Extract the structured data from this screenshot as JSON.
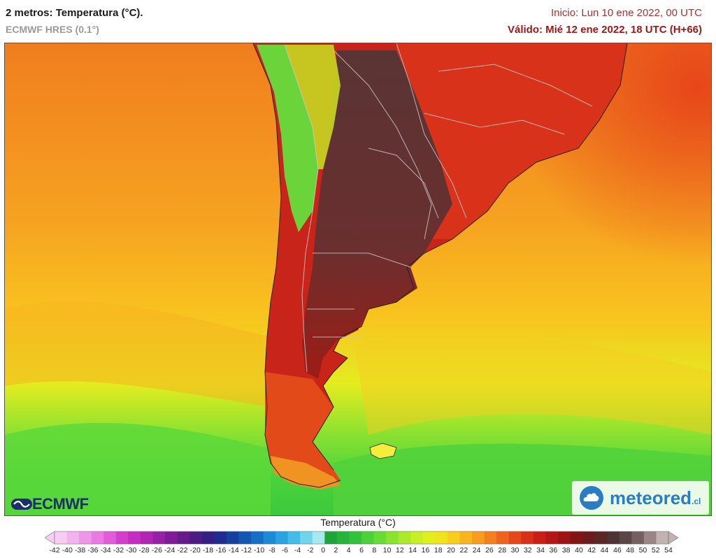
{
  "header": {
    "title": "2 metros: Temperatura (°C).",
    "model": "ECMWF HRES (0.1°)",
    "init": "Inicio: Lun 10 ene 2022, 00 UTC",
    "valid": "Válido: Mié 12 ene 2022, 18 UTC (H+66)"
  },
  "logos": {
    "ecmwf": "ECMWF",
    "meteored": "meteored",
    "meteored_tld": ".cl"
  },
  "legend": {
    "title": "Temperatura (°C)",
    "ticks": [
      "-42",
      "-40",
      "-38",
      "-36",
      "-34",
      "-32",
      "-30",
      "-28",
      "-26",
      "-24",
      "-22",
      "-20",
      "-18",
      "-16",
      "-14",
      "-12",
      "-10",
      "-8",
      "-6",
      "-4",
      "-2",
      "0",
      "2",
      "4",
      "6",
      "8",
      "10",
      "12",
      "14",
      "16",
      "18",
      "20",
      "22",
      "24",
      "26",
      "28",
      "30",
      "32",
      "34",
      "36",
      "38",
      "40",
      "42",
      "44",
      "46",
      "48",
      "50",
      "52",
      "54"
    ],
    "colors": [
      "#f7cdf3",
      "#f3b3ee",
      "#ee97e8",
      "#e97ae1",
      "#e05cd8",
      "#d43ecd",
      "#c52cc1",
      "#b025b2",
      "#9720a4",
      "#7e1b97",
      "#671a8a",
      "#4c1c86",
      "#332082",
      "#1f2b8e",
      "#16409e",
      "#1457b3",
      "#1470c7",
      "#1c8ad6",
      "#2aa3e0",
      "#41bde8",
      "#6fd4ec",
      "#a6e9ee",
      "#1fa33b",
      "#27b43a",
      "#34c23a",
      "#4bd23a",
      "#67dc34",
      "#8ae42d",
      "#aaea28",
      "#c8ef23",
      "#e2ef1f",
      "#f3e31d",
      "#f8cd1e",
      "#f9b51f",
      "#f89c1f",
      "#f47f1e",
      "#ee641c",
      "#e4481a",
      "#d83118",
      "#c82017",
      "#b51616",
      "#9d1413",
      "#841515",
      "#6c1c1c",
      "#5a2727",
      "#4d3333",
      "#5b4646",
      "#765f5f",
      "#9a8686",
      "#c2b2b2"
    ]
  }
}
